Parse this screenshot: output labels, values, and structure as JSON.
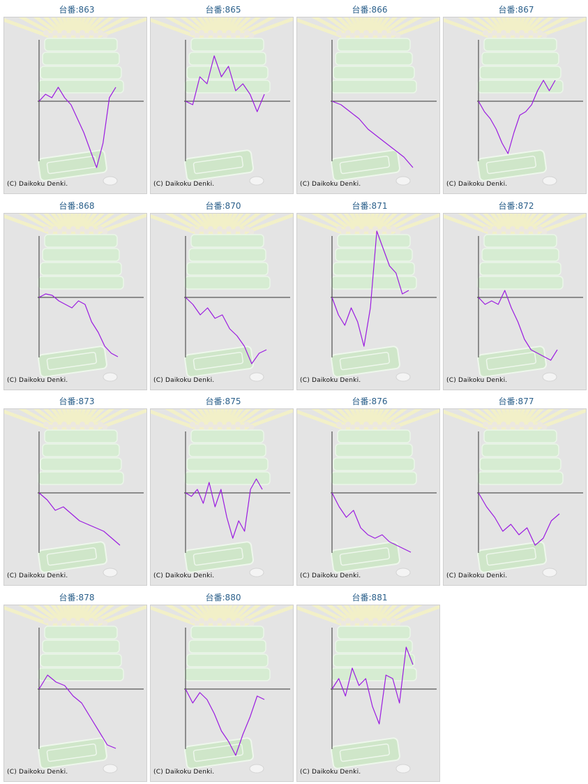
{
  "credit": "(C) Daikoku Denki.",
  "colors": {
    "line": "#9b1ce0",
    "title": "#2a5f8a",
    "frame_bg": "#e4e4e4",
    "axis": "#333333"
  },
  "machines": [
    {
      "label": "台番:863",
      "chart_data": {
        "type": "line",
        "values": [
          0,
          0.1,
          0.05,
          0.2,
          0.05,
          -0.05,
          -0.25,
          -0.45,
          -0.7,
          -0.95,
          -0.6,
          0.05,
          0.2
        ]
      }
    },
    {
      "label": "台番:865",
      "chart_data": {
        "type": "line",
        "values": [
          0,
          -0.05,
          0.35,
          0.25,
          0.65,
          0.35,
          0.5,
          0.15,
          0.25,
          0.1,
          -0.15,
          0.1
        ]
      }
    },
    {
      "label": "台番:866",
      "chart_data": {
        "type": "line",
        "values": [
          0,
          -0.05,
          -0.15,
          -0.25,
          -0.4,
          -0.5,
          -0.6,
          -0.7,
          -0.8,
          -0.95
        ]
      }
    },
    {
      "label": "台番:867",
      "chart_data": {
        "type": "line",
        "values": [
          0,
          -0.15,
          -0.25,
          -0.4,
          -0.6,
          -0.75,
          -0.45,
          -0.2,
          -0.15,
          -0.05,
          0.15,
          0.3,
          0.15,
          0.3
        ]
      }
    },
    {
      "label": "台番:868",
      "chart_data": {
        "type": "line",
        "values": [
          0,
          0.05,
          0.03,
          -0.05,
          -0.1,
          -0.15,
          -0.05,
          -0.1,
          -0.35,
          -0.5,
          -0.7,
          -0.8,
          -0.85
        ]
      }
    },
    {
      "label": "台番:870",
      "chart_data": {
        "type": "line",
        "values": [
          0,
          -0.1,
          -0.25,
          -0.15,
          -0.3,
          -0.25,
          -0.45,
          -0.55,
          -0.7,
          -0.95,
          -0.8,
          -0.75
        ]
      }
    },
    {
      "label": "台番:871",
      "chart_data": {
        "type": "line",
        "values": [
          0,
          -0.25,
          -0.4,
          -0.15,
          -0.35,
          -0.7,
          -0.15,
          0.95,
          0.7,
          0.45,
          0.35,
          0.05,
          0.1
        ]
      }
    },
    {
      "label": "台番:872",
      "chart_data": {
        "type": "line",
        "values": [
          0,
          -0.1,
          -0.05,
          -0.1,
          0.1,
          -0.15,
          -0.35,
          -0.6,
          -0.75,
          -0.8,
          -0.85,
          -0.9,
          -0.75
        ]
      }
    },
    {
      "label": "台番:873",
      "chart_data": {
        "type": "line",
        "values": [
          0,
          -0.1,
          -0.25,
          -0.2,
          -0.3,
          -0.4,
          -0.45,
          -0.5,
          -0.55,
          -0.65,
          -0.75
        ]
      }
    },
    {
      "label": "台番:875",
      "chart_data": {
        "type": "line",
        "values": [
          0,
          -0.05,
          0.05,
          -0.15,
          0.15,
          -0.2,
          0.05,
          -0.35,
          -0.65,
          -0.4,
          -0.55,
          0.05,
          0.2,
          0.05
        ]
      }
    },
    {
      "label": "台番:876",
      "chart_data": {
        "type": "line",
        "values": [
          0,
          -0.2,
          -0.35,
          -0.25,
          -0.5,
          -0.6,
          -0.65,
          -0.6,
          -0.7,
          -0.75,
          -0.8,
          -0.85
        ]
      }
    },
    {
      "label": "台番:877",
      "chart_data": {
        "type": "line",
        "values": [
          0,
          -0.2,
          -0.35,
          -0.55,
          -0.45,
          -0.6,
          -0.5,
          -0.75,
          -0.65,
          -0.4,
          -0.3
        ]
      }
    },
    {
      "label": "台番:878",
      "chart_data": {
        "type": "line",
        "values": [
          0,
          0.2,
          0.1,
          0.05,
          -0.1,
          -0.2,
          -0.4,
          -0.6,
          -0.8,
          -0.85
        ]
      }
    },
    {
      "label": "台番:880",
      "chart_data": {
        "type": "line",
        "values": [
          0,
          -0.2,
          -0.05,
          -0.15,
          -0.35,
          -0.6,
          -0.75,
          -0.95,
          -0.65,
          -0.4,
          -0.1,
          -0.15
        ]
      }
    },
    {
      "label": "台番:881",
      "chart_data": {
        "type": "line",
        "values": [
          0,
          0.15,
          -0.1,
          0.3,
          0.05,
          0.15,
          -0.25,
          -0.5,
          0.2,
          0.15,
          -0.2,
          0.6,
          0.35
        ]
      }
    }
  ]
}
